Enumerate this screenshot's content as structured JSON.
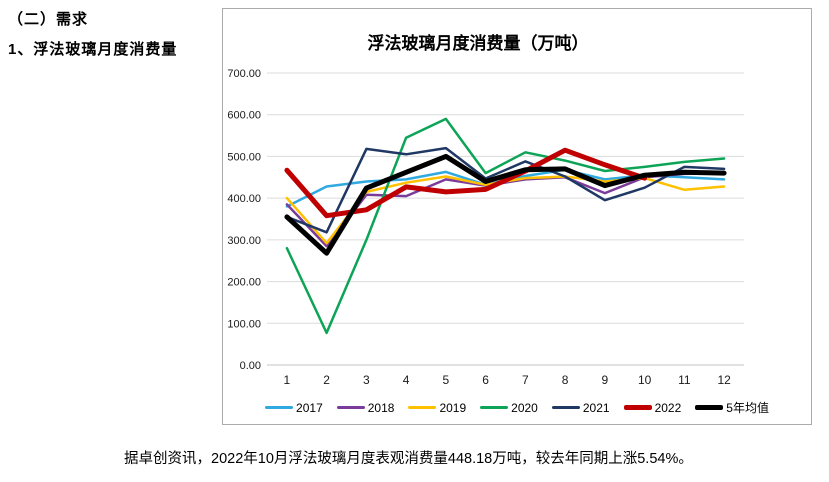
{
  "page": {
    "heading1": "（二）需求",
    "heading2": "1、浮法玻璃月度消费量",
    "caption": "据卓创资讯，2022年10月浮法玻璃月度表观消费量448.18万吨，较去年同期上涨5.54%。"
  },
  "chart_data": {
    "type": "line",
    "title": "浮法玻璃月度消费量（万吨）",
    "xlabel": "",
    "ylabel": "",
    "categories": [
      "1",
      "2",
      "3",
      "4",
      "5",
      "6",
      "7",
      "8",
      "9",
      "10",
      "11",
      "12"
    ],
    "ylim": [
      0,
      700
    ],
    "ytick_interval": 100,
    "ytick_decimals": 2,
    "grid": true,
    "legend_position": "bottom",
    "unit": "万吨",
    "series": [
      {
        "name": "2017",
        "color": "#2FA9E0",
        "width": 2.5,
        "values": [
          380,
          428,
          440,
          445,
          463,
          432,
          453,
          468,
          445,
          455,
          450,
          445
        ]
      },
      {
        "name": "2018",
        "color": "#7A3B9B",
        "width": 2.5,
        "values": [
          385,
          285,
          408,
          405,
          445,
          430,
          445,
          450,
          412,
          450,
          458,
          460
        ]
      },
      {
        "name": "2019",
        "color": "#FFC000",
        "width": 2.5,
        "values": [
          400,
          292,
          415,
          437,
          452,
          432,
          448,
          452,
          440,
          448,
          420,
          428
        ]
      },
      {
        "name": "2020",
        "color": "#0DA457",
        "width": 2.5,
        "values": [
          280,
          77,
          300,
          545,
          590,
          460,
          510,
          490,
          465,
          475,
          487,
          495
        ]
      },
      {
        "name": "2021",
        "color": "#1F3864",
        "width": 2.5,
        "values": [
          355,
          318,
          518,
          505,
          520,
          447,
          488,
          452,
          395,
          425,
          475,
          470
        ]
      },
      {
        "name": "2022",
        "color": "#C00000",
        "width": 5,
        "values": [
          467,
          358,
          372,
          427,
          415,
          421,
          465,
          515,
          480,
          448,
          null,
          null
        ]
      },
      {
        "name": "5年均值",
        "color": "#000000",
        "width": 5,
        "values": [
          355,
          268,
          424,
          462,
          500,
          440,
          468,
          470,
          430,
          455,
          462,
          460
        ]
      }
    ]
  }
}
